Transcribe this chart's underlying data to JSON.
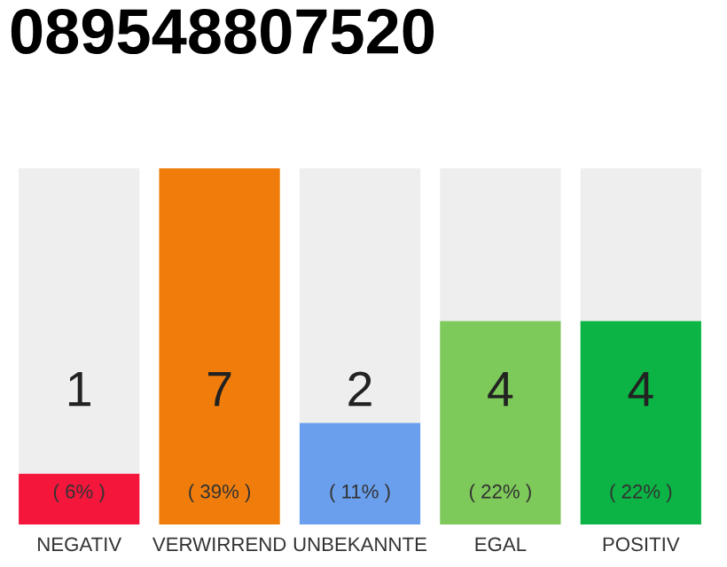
{
  "chart_data": {
    "type": "bar",
    "title": "089548807520",
    "stacked": true,
    "categories": [
      "NEGATIV",
      "VERWIRREND",
      "UNBEKANNTE",
      "EGAL",
      "POSITIV"
    ],
    "series": [
      {
        "colors": [
          "#f5163c",
          "#f07d0b",
          "#6a9fed",
          "#7dc95a",
          "#0bb444"
        ],
        "values": [
          1,
          7,
          2,
          4,
          4
        ],
        "value_labels": [
          "1",
          "7",
          "2",
          "4",
          "4"
        ]
      },
      {
        "color": "#eeeeee",
        "values": [
          6,
          0,
          5,
          3,
          3
        ]
      }
    ],
    "annotations": [
      {
        "text": "( 6% )",
        "x": "NEGATIV",
        "y": 0
      },
      {
        "text": "( 39% )",
        "x": "VERWIRREND",
        "y": 0
      },
      {
        "text": "( 11% )",
        "x": "UNBEKANNTE",
        "y": 0
      },
      {
        "text": "( 22% )",
        "x": "EGAL",
        "y": 0
      },
      {
        "text": "( 22% )",
        "x": "POSITIV",
        "y": 0
      }
    ],
    "grid": false,
    "legend": false
  }
}
